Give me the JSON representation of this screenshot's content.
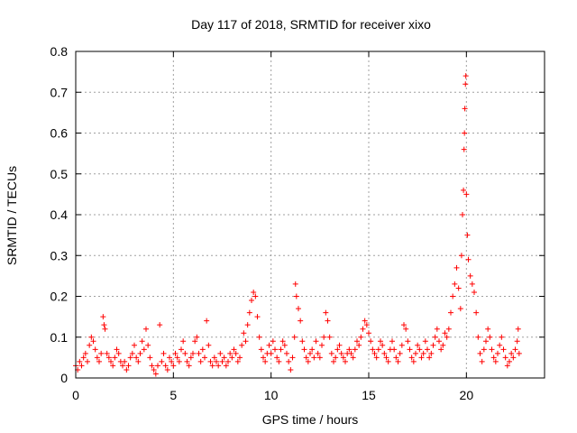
{
  "chart_data": {
    "type": "scatter",
    "title": "Day 117 of 2018, SRMTID for receiver xixo",
    "xlabel": "GPS time / hours",
    "ylabel": "SRMTID / TECUs",
    "xlim": [
      0,
      24
    ],
    "ylim": [
      0,
      0.8
    ],
    "xticks": [
      0,
      5,
      10,
      15,
      20
    ],
    "xtick_labels": [
      "0",
      "5",
      "10",
      "15",
      "20"
    ],
    "yticks": [
      0,
      0.1,
      0.2,
      0.3,
      0.4,
      0.5,
      0.6,
      0.7,
      0.8
    ],
    "ytick_labels": [
      "0",
      "0.1",
      "0.2",
      "0.3",
      "0.4",
      "0.5",
      "0.6",
      "0.7",
      "0.8"
    ],
    "grid": true,
    "marker": "+",
    "color": "#ff0000",
    "series": [
      {
        "name": "SRMTID",
        "points": [
          [
            0.0,
            0.03
          ],
          [
            0.1,
            0.02
          ],
          [
            0.2,
            0.04
          ],
          [
            0.3,
            0.03
          ],
          [
            0.4,
            0.05
          ],
          [
            0.5,
            0.06
          ],
          [
            0.6,
            0.04
          ],
          [
            0.7,
            0.08
          ],
          [
            0.8,
            0.1
          ],
          [
            0.9,
            0.09
          ],
          [
            1.0,
            0.07
          ],
          [
            1.1,
            0.05
          ],
          [
            1.2,
            0.04
          ],
          [
            1.3,
            0.06
          ],
          [
            1.4,
            0.15
          ],
          [
            1.45,
            0.13
          ],
          [
            1.5,
            0.12
          ],
          [
            1.6,
            0.06
          ],
          [
            1.7,
            0.05
          ],
          [
            1.8,
            0.04
          ],
          [
            1.9,
            0.03
          ],
          [
            2.0,
            0.05
          ],
          [
            2.1,
            0.07
          ],
          [
            2.2,
            0.06
          ],
          [
            2.3,
            0.04
          ],
          [
            2.4,
            0.03
          ],
          [
            2.5,
            0.04
          ],
          [
            2.6,
            0.02
          ],
          [
            2.7,
            0.03
          ],
          [
            2.8,
            0.05
          ],
          [
            2.9,
            0.06
          ],
          [
            3.0,
            0.08
          ],
          [
            3.1,
            0.05
          ],
          [
            3.2,
            0.04
          ],
          [
            3.3,
            0.06
          ],
          [
            3.4,
            0.09
          ],
          [
            3.5,
            0.07
          ],
          [
            3.6,
            0.12
          ],
          [
            3.7,
            0.08
          ],
          [
            3.8,
            0.05
          ],
          [
            3.9,
            0.03
          ],
          [
            4.0,
            0.02
          ],
          [
            4.1,
            0.01
          ],
          [
            4.2,
            0.03
          ],
          [
            4.3,
            0.13
          ],
          [
            4.4,
            0.04
          ],
          [
            4.5,
            0.06
          ],
          [
            4.6,
            0.03
          ],
          [
            4.7,
            0.02
          ],
          [
            4.8,
            0.05
          ],
          [
            4.9,
            0.04
          ],
          [
            5.0,
            0.03
          ],
          [
            5.1,
            0.06
          ],
          [
            5.2,
            0.05
          ],
          [
            5.3,
            0.04
          ],
          [
            5.4,
            0.07
          ],
          [
            5.5,
            0.09
          ],
          [
            5.6,
            0.06
          ],
          [
            5.7,
            0.04
          ],
          [
            5.8,
            0.03
          ],
          [
            5.9,
            0.05
          ],
          [
            6.0,
            0.06
          ],
          [
            6.1,
            0.09
          ],
          [
            6.2,
            0.1
          ],
          [
            6.3,
            0.06
          ],
          [
            6.4,
            0.04
          ],
          [
            6.5,
            0.07
          ],
          [
            6.6,
            0.05
          ],
          [
            6.7,
            0.14
          ],
          [
            6.8,
            0.08
          ],
          [
            6.9,
            0.04
          ],
          [
            7.0,
            0.03
          ],
          [
            7.1,
            0.05
          ],
          [
            7.2,
            0.04
          ],
          [
            7.3,
            0.03
          ],
          [
            7.4,
            0.06
          ],
          [
            7.5,
            0.04
          ],
          [
            7.6,
            0.05
          ],
          [
            7.7,
            0.03
          ],
          [
            7.8,
            0.04
          ],
          [
            7.9,
            0.06
          ],
          [
            8.0,
            0.05
          ],
          [
            8.1,
            0.07
          ],
          [
            8.2,
            0.06
          ],
          [
            8.3,
            0.04
          ],
          [
            8.4,
            0.05
          ],
          [
            8.5,
            0.08
          ],
          [
            8.6,
            0.11
          ],
          [
            8.7,
            0.09
          ],
          [
            8.8,
            0.13
          ],
          [
            8.9,
            0.16
          ],
          [
            9.0,
            0.19
          ],
          [
            9.1,
            0.21
          ],
          [
            9.2,
            0.2
          ],
          [
            9.3,
            0.15
          ],
          [
            9.4,
            0.1
          ],
          [
            9.5,
            0.07
          ],
          [
            9.6,
            0.05
          ],
          [
            9.7,
            0.04
          ],
          [
            9.8,
            0.06
          ],
          [
            9.9,
            0.08
          ],
          [
            10.0,
            0.06
          ],
          [
            10.1,
            0.09
          ],
          [
            10.2,
            0.07
          ],
          [
            10.3,
            0.05
          ],
          [
            10.4,
            0.04
          ],
          [
            10.5,
            0.07
          ],
          [
            10.6,
            0.09
          ],
          [
            10.7,
            0.08
          ],
          [
            10.8,
            0.06
          ],
          [
            10.9,
            0.04
          ],
          [
            11.0,
            0.02
          ],
          [
            11.1,
            0.05
          ],
          [
            11.2,
            0.1
          ],
          [
            11.25,
            0.23
          ],
          [
            11.3,
            0.2
          ],
          [
            11.4,
            0.17
          ],
          [
            11.5,
            0.14
          ],
          [
            11.6,
            0.09
          ],
          [
            11.7,
            0.07
          ],
          [
            11.8,
            0.05
          ],
          [
            11.9,
            0.04
          ],
          [
            12.0,
            0.06
          ],
          [
            12.1,
            0.07
          ],
          [
            12.2,
            0.05
          ],
          [
            12.3,
            0.09
          ],
          [
            12.4,
            0.06
          ],
          [
            12.5,
            0.05
          ],
          [
            12.6,
            0.08
          ],
          [
            12.7,
            0.1
          ],
          [
            12.8,
            0.16
          ],
          [
            12.9,
            0.14
          ],
          [
            13.0,
            0.1
          ],
          [
            13.1,
            0.06
          ],
          [
            13.2,
            0.04
          ],
          [
            13.3,
            0.05
          ],
          [
            13.4,
            0.07
          ],
          [
            13.5,
            0.08
          ],
          [
            13.6,
            0.06
          ],
          [
            13.7,
            0.05
          ],
          [
            13.8,
            0.04
          ],
          [
            13.9,
            0.06
          ],
          [
            14.0,
            0.07
          ],
          [
            14.1,
            0.06
          ],
          [
            14.2,
            0.05
          ],
          [
            14.3,
            0.07
          ],
          [
            14.4,
            0.09
          ],
          [
            14.5,
            0.08
          ],
          [
            14.6,
            0.1
          ],
          [
            14.7,
            0.12
          ],
          [
            14.8,
            0.14
          ],
          [
            14.9,
            0.13
          ],
          [
            15.0,
            0.11
          ],
          [
            15.1,
            0.09
          ],
          [
            15.2,
            0.07
          ],
          [
            15.3,
            0.06
          ],
          [
            15.4,
            0.05
          ],
          [
            15.5,
            0.07
          ],
          [
            15.6,
            0.09
          ],
          [
            15.7,
            0.08
          ],
          [
            15.8,
            0.06
          ],
          [
            15.9,
            0.05
          ],
          [
            16.0,
            0.04
          ],
          [
            16.1,
            0.07
          ],
          [
            16.2,
            0.09
          ],
          [
            16.3,
            0.07
          ],
          [
            16.4,
            0.05
          ],
          [
            16.5,
            0.04
          ],
          [
            16.6,
            0.06
          ],
          [
            16.7,
            0.08
          ],
          [
            16.8,
            0.13
          ],
          [
            16.9,
            0.12
          ],
          [
            17.0,
            0.09
          ],
          [
            17.1,
            0.07
          ],
          [
            17.2,
            0.05
          ],
          [
            17.3,
            0.04
          ],
          [
            17.4,
            0.06
          ],
          [
            17.5,
            0.08
          ],
          [
            17.6,
            0.07
          ],
          [
            17.7,
            0.05
          ],
          [
            17.8,
            0.06
          ],
          [
            17.9,
            0.09
          ],
          [
            18.0,
            0.07
          ],
          [
            18.1,
            0.05
          ],
          [
            18.2,
            0.06
          ],
          [
            18.3,
            0.08
          ],
          [
            18.4,
            0.1
          ],
          [
            18.5,
            0.12
          ],
          [
            18.6,
            0.09
          ],
          [
            18.7,
            0.07
          ],
          [
            18.8,
            0.08
          ],
          [
            18.9,
            0.11
          ],
          [
            19.0,
            0.1
          ],
          [
            19.1,
            0.12
          ],
          [
            19.2,
            0.16
          ],
          [
            19.3,
            0.2
          ],
          [
            19.4,
            0.23
          ],
          [
            19.5,
            0.27
          ],
          [
            19.6,
            0.22
          ],
          [
            19.7,
            0.17
          ],
          [
            19.75,
            0.3
          ],
          [
            19.8,
            0.4
          ],
          [
            19.85,
            0.46
          ],
          [
            19.88,
            0.56
          ],
          [
            19.9,
            0.6
          ],
          [
            19.92,
            0.66
          ],
          [
            19.95,
            0.72
          ],
          [
            19.97,
            0.74
          ],
          [
            20.0,
            0.45
          ],
          [
            20.05,
            0.35
          ],
          [
            20.1,
            0.29
          ],
          [
            20.2,
            0.25
          ],
          [
            20.3,
            0.23
          ],
          [
            20.4,
            0.21
          ],
          [
            20.5,
            0.16
          ],
          [
            20.6,
            0.1
          ],
          [
            20.7,
            0.06
          ],
          [
            20.8,
            0.04
          ],
          [
            20.9,
            0.07
          ],
          [
            21.0,
            0.09
          ],
          [
            21.1,
            0.12
          ],
          [
            21.2,
            0.1
          ],
          [
            21.3,
            0.07
          ],
          [
            21.4,
            0.05
          ],
          [
            21.5,
            0.04
          ],
          [
            21.6,
            0.06
          ],
          [
            21.7,
            0.08
          ],
          [
            21.8,
            0.1
          ],
          [
            21.9,
            0.07
          ],
          [
            22.0,
            0.05
          ],
          [
            22.1,
            0.03
          ],
          [
            22.2,
            0.04
          ],
          [
            22.3,
            0.06
          ],
          [
            22.4,
            0.05
          ],
          [
            22.5,
            0.07
          ],
          [
            22.6,
            0.09
          ],
          [
            22.65,
            0.12
          ],
          [
            22.7,
            0.06
          ]
        ]
      }
    ]
  }
}
